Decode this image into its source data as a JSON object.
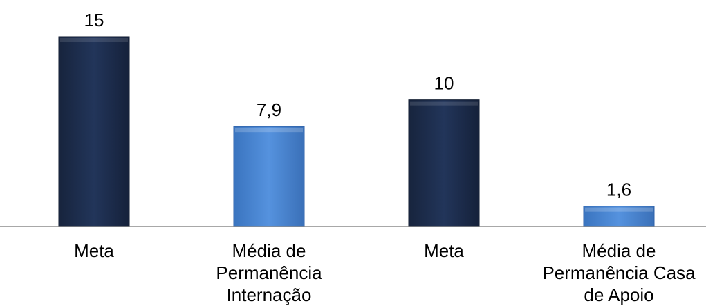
{
  "chart_data": {
    "type": "bar",
    "categories": [
      [
        "Meta"
      ],
      [
        "Média de",
        "Permanência",
        "Internação"
      ],
      [
        "Meta"
      ],
      [
        "Média de",
        "Permanência Casa",
        "de Apoio"
      ]
    ],
    "values": [
      15,
      7.9,
      10,
      1.6
    ],
    "value_labels": [
      "15",
      "7,9",
      "10",
      "1,6"
    ],
    "bar_colors": [
      "#1f3050",
      "#4a86d0",
      "#1f3050",
      "#4a86d0"
    ],
    "axis_color": "#8c8c8c",
    "ylim": [
      0,
      15
    ],
    "grid": false,
    "legend": false
  }
}
